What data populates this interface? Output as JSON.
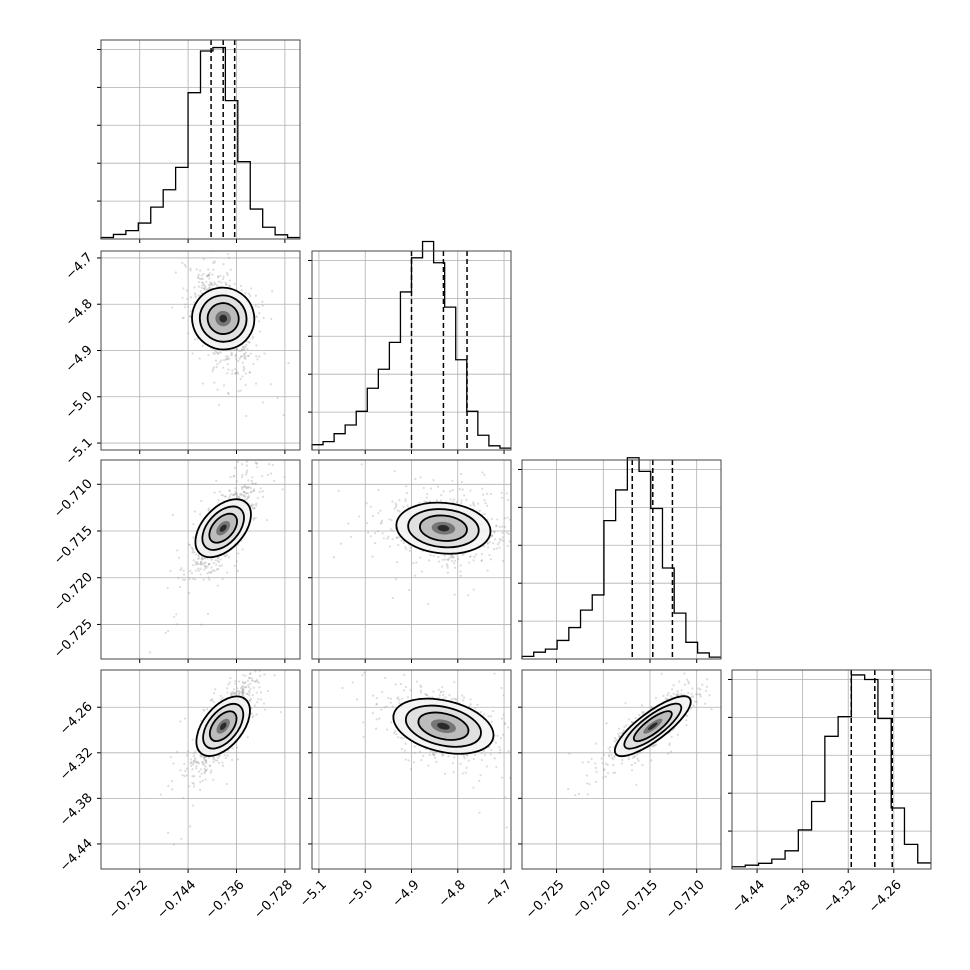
{
  "chart_data": {
    "type": "corner",
    "parameters": [
      {
        "ticks": [
          -0.752,
          -0.744,
          -0.736,
          -0.728
        ],
        "tick_labels": [
          "−0.752",
          "−0.744",
          "−0.736",
          "−0.728"
        ],
        "range": [
          -0.7584,
          -0.7255
        ]
      },
      {
        "ticks": [
          -5.1,
          -5.0,
          -4.9,
          -4.8,
          -4.7
        ],
        "tick_labels": [
          "−5.1",
          "−5.0",
          "−4.9",
          "−4.8",
          "−4.7"
        ],
        "range": [
          -5.115,
          -4.685
        ]
      },
      {
        "ticks": [
          -0.725,
          -0.72,
          -0.715,
          -0.71
        ],
        "tick_labels": [
          "−0.725",
          "−0.720",
          "−0.715",
          "−0.710"
        ],
        "range": [
          -0.7287,
          -0.7074
        ]
      },
      {
        "ticks": [
          -4.44,
          -4.38,
          -4.32,
          -4.26
        ],
        "tick_labels": [
          "−4.44",
          "−4.38",
          "−4.32",
          "−4.26"
        ],
        "range": [
          -4.473,
          -4.211
        ]
      }
    ],
    "quantiles": [
      [
        -0.7402,
        -0.7382,
        -0.7363
      ],
      [
        -4.9,
        -4.831,
        -4.78
      ],
      [
        -0.7169,
        -0.7147,
        -0.7126
      ],
      [
        -4.316,
        -4.285,
        -4.262
      ]
    ],
    "histograms": [
      [
        0.4,
        1.2,
        2.2,
        4.2,
        8.4,
        13.0,
        18.9,
        38.6,
        49.6,
        50.5,
        36.5,
        20.4,
        7.9,
        3.1,
        1.1,
        0.4
      ],
      [
        1.4,
        2.2,
        4.3,
        6.6,
        10.2,
        16.3,
        21.3,
        28.4,
        41.7,
        50.7,
        55.0,
        49.4,
        37.7,
        23.8,
        10.2,
        3.9,
        1.1,
        0.5
      ],
      [
        0.7,
        1.8,
        2.6,
        4.9,
        8.3,
        12.9,
        16.9,
        36.5,
        44.6,
        53.1,
        49.5,
        39.7,
        24.0,
        12.1,
        4.4,
        1.6,
        0.5
      ],
      [
        0.6,
        1.0,
        1.5,
        2.6,
        4.8,
        10.3,
        17.8,
        35.0,
        40.2,
        51.2,
        50.0,
        39.7,
        16.1,
        6.5,
        1.6
      ]
    ],
    "hist_ymax": 52.5,
    "grid": true,
    "plot_style": "2D density: scatter points, shaded greyscale histogram and contour levels"
  }
}
